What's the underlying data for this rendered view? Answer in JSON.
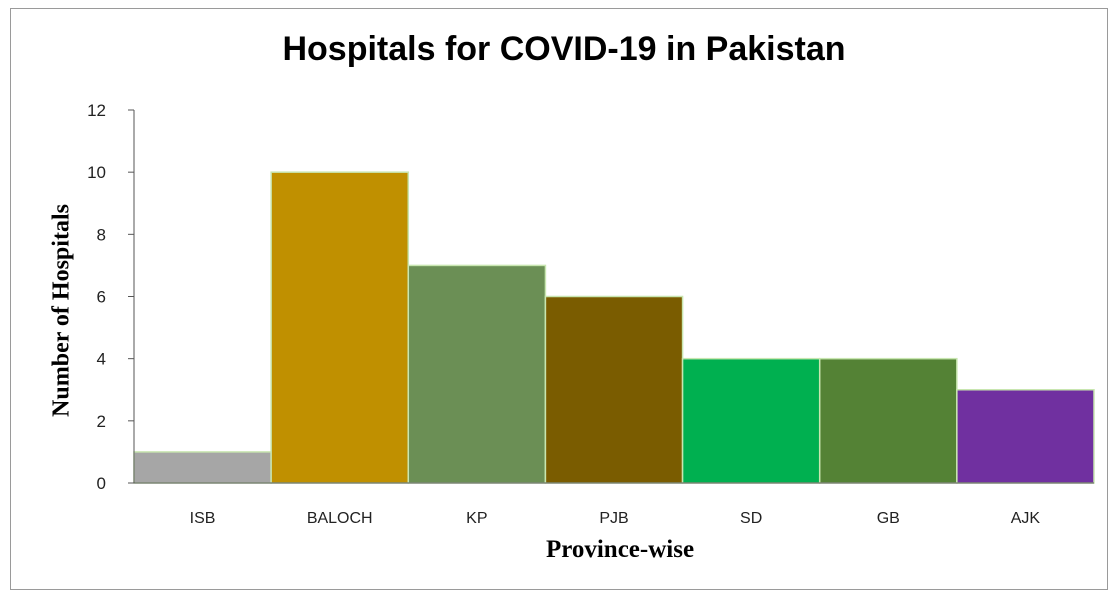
{
  "chart_data": {
    "type": "bar",
    "title": "Hospitals for COVID-19 in Pakistan",
    "xlabel": "Province-wise",
    "ylabel": "Number of Hospitals",
    "categories": [
      "ISB",
      "BALOCH",
      "KP",
      "PJB",
      "SD",
      "GB",
      "AJK"
    ],
    "values": [
      1,
      10,
      7,
      6,
      4,
      4,
      3
    ],
    "colors": [
      "#a6a6a6",
      "#c09000",
      "#6b8f55",
      "#7a5c00",
      "#00b050",
      "#548235",
      "#7030a0"
    ],
    "ylim": [
      0,
      12
    ],
    "yticks": [
      0,
      2,
      4,
      6,
      8,
      10,
      12
    ],
    "grid": false,
    "legend": "none"
  }
}
